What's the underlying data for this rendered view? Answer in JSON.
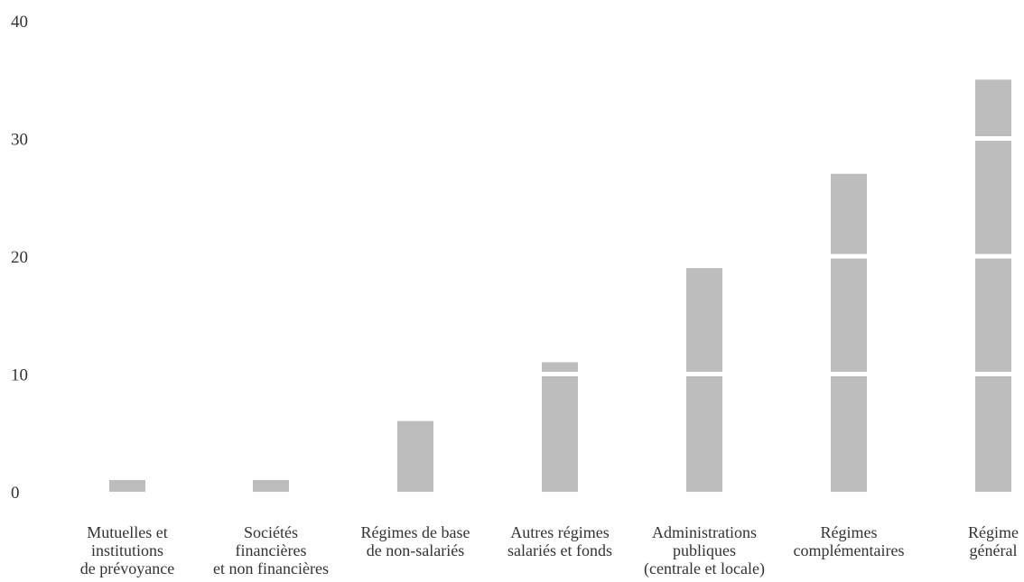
{
  "chart_data": {
    "type": "bar",
    "title": "",
    "xlabel": "",
    "ylabel": "",
    "ylim": [
      0,
      40
    ],
    "yticks": [
      "0",
      "10",
      "20",
      "30",
      "40"
    ],
    "grid": false,
    "bar_color": "#bdbdbd",
    "segment_separator_color": "#ffffff",
    "segment_breaks_every": 10,
    "categories": [
      [
        "Mutuelles et",
        "institutions",
        "de prévoyance"
      ],
      [
        "Sociétés",
        "financières",
        "et non financières"
      ],
      [
        "Régimes de base",
        "de non-salariés"
      ],
      [
        "Autres régimes",
        "salariés et fonds"
      ],
      [
        "Administrations",
        "publiques",
        "(centrale et locale)"
      ],
      [
        "Régimes",
        "complémentaires"
      ],
      [
        "Régime",
        "général"
      ]
    ],
    "values": [
      1,
      1,
      6,
      11,
      19,
      27,
      35
    ]
  }
}
